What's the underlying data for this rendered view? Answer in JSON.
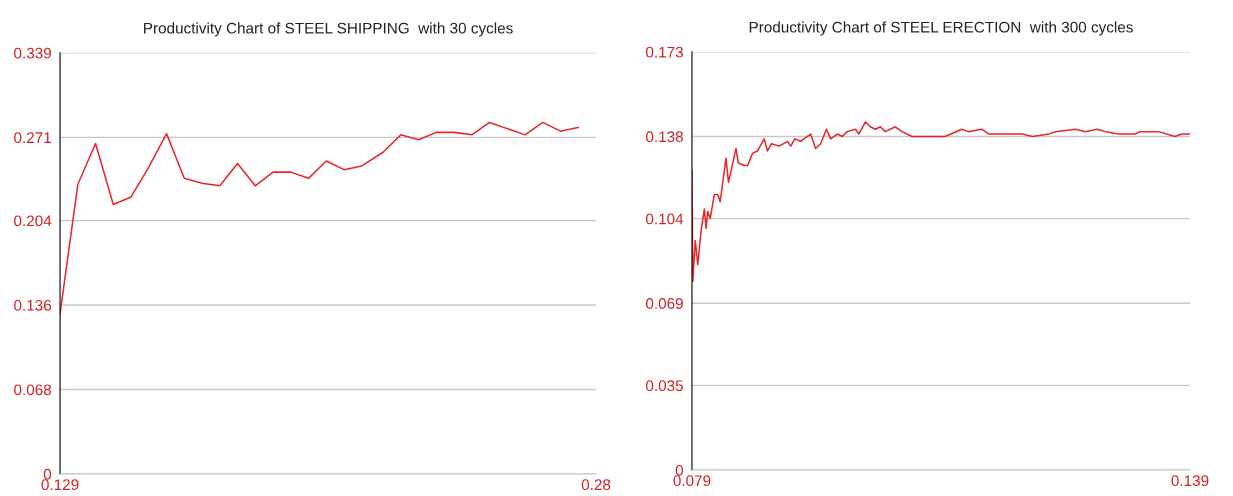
{
  "chart_data": [
    {
      "type": "line",
      "title": "Productivity Chart of STEEL SHIPPING  with 30 cycles",
      "x": [
        0.129,
        0.134,
        0.139,
        0.144,
        0.149,
        0.154,
        0.159,
        0.164,
        0.169,
        0.174,
        0.179,
        0.184,
        0.189,
        0.194,
        0.199,
        0.204,
        0.209,
        0.214,
        0.22,
        0.225,
        0.23,
        0.235,
        0.24,
        0.245,
        0.25,
        0.255,
        0.26,
        0.265,
        0.27,
        0.275
      ],
      "series": [
        {
          "color": "#e8262a",
          "values": [
            0.129,
            0.233,
            0.266,
            0.217,
            0.223,
            0.247,
            0.274,
            0.238,
            0.234,
            0.232,
            0.25,
            0.232,
            0.243,
            0.243,
            0.238,
            0.252,
            0.245,
            0.248,
            0.259,
            0.273,
            0.269,
            0.275,
            0.275,
            0.273,
            0.283,
            0.278,
            0.273,
            0.283,
            0.276,
            0.279
          ]
        }
      ],
      "xlim": [
        0.129,
        0.28
      ],
      "xticks": [
        0.129,
        0.28
      ],
      "ylim": [
        0,
        0.339
      ],
      "yticks": [
        0,
        0.068,
        0.136,
        0.204,
        0.271,
        0.339
      ],
      "grid": "y",
      "marker": "none",
      "line_style": "solid"
    },
    {
      "type": "line",
      "title": "Productivity Chart of STEEL ERECTION  with 300 cycles",
      "x": [
        0.079,
        0.0791,
        0.0794,
        0.0797,
        0.0801,
        0.0805,
        0.0807,
        0.0809,
        0.0812,
        0.0817,
        0.0821,
        0.0824,
        0.0831,
        0.0834,
        0.0843,
        0.0846,
        0.0853,
        0.0857,
        0.0863,
        0.0869,
        0.0877,
        0.0881,
        0.0886,
        0.0895,
        0.0905,
        0.0909,
        0.0914,
        0.0921,
        0.0925,
        0.0933,
        0.0939,
        0.0945,
        0.0952,
        0.0957,
        0.0965,
        0.0971,
        0.0977,
        0.0987,
        0.0991,
        0.0999,
        0.1005,
        0.1011,
        0.1017,
        0.1023,
        0.1035,
        0.1043,
        0.1055,
        0.1071,
        0.1095,
        0.1115,
        0.1123,
        0.1139,
        0.1148,
        0.1168,
        0.1188,
        0.12,
        0.122,
        0.1228,
        0.1252,
        0.1264,
        0.1278,
        0.1288,
        0.1304,
        0.1324,
        0.133,
        0.1344,
        0.1352,
        0.1372,
        0.138,
        0.139
      ],
      "series": [
        {
          "color": "#e8262a",
          "values": [
            0.124,
            0.078,
            0.095,
            0.085,
            0.099,
            0.108,
            0.1,
            0.107,
            0.104,
            0.114,
            0.114,
            0.111,
            0.129,
            0.119,
            0.133,
            0.127,
            0.126,
            0.126,
            0.131,
            0.132,
            0.137,
            0.132,
            0.135,
            0.134,
            0.136,
            0.134,
            0.137,
            0.136,
            0.137,
            0.139,
            0.133,
            0.135,
            0.141,
            0.137,
            0.139,
            0.138,
            0.14,
            0.141,
            0.139,
            0.144,
            0.142,
            0.141,
            0.142,
            0.14,
            0.142,
            0.14,
            0.138,
            0.138,
            0.138,
            0.141,
            0.14,
            0.141,
            0.139,
            0.139,
            0.139,
            0.138,
            0.139,
            0.14,
            0.141,
            0.14,
            0.141,
            0.14,
            0.139,
            0.139,
            0.14,
            0.14,
            0.14,
            0.138,
            0.139,
            0.139
          ]
        }
      ],
      "xlim": [
        0.079,
        0.139
      ],
      "xticks": [
        0.079,
        0.139
      ],
      "ylim": [
        0,
        0.173
      ],
      "yticks": [
        0,
        0.035,
        0.069,
        0.104,
        0.138,
        0.173
      ],
      "grid": "y",
      "marker": "none",
      "line_style": "solid"
    }
  ]
}
